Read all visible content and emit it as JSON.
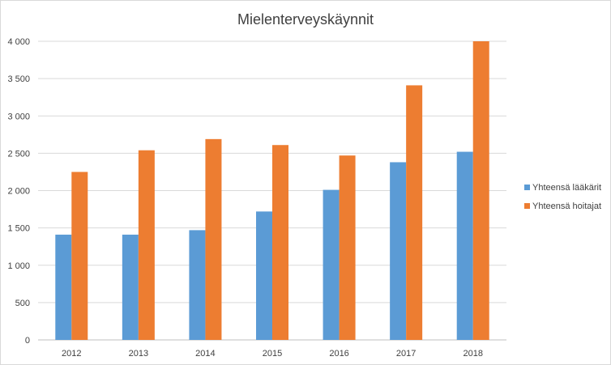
{
  "chart_data": {
    "type": "bar",
    "title": "Mielenterveyskäynnit",
    "categories": [
      "2012",
      "2013",
      "2014",
      "2015",
      "2016",
      "2017",
      "2018"
    ],
    "series": [
      {
        "name": "Yhteensä lääkärit",
        "color": "#5b9bd5",
        "values": [
          1410,
          1410,
          1470,
          1720,
          2010,
          2380,
          2520
        ]
      },
      {
        "name": "Yhteensä hoitajat",
        "color": "#ed7d31",
        "values": [
          2250,
          2540,
          2690,
          2610,
          2470,
          3410,
          4000
        ]
      }
    ],
    "yticks": [
      "0",
      "500",
      "1 000",
      "1 500",
      "2 000",
      "2 500",
      "3 000",
      "3 500",
      "4 000"
    ],
    "ylim": [
      0,
      4000
    ],
    "grid": true,
    "legend_position": "right",
    "xlabel": "",
    "ylabel": ""
  }
}
